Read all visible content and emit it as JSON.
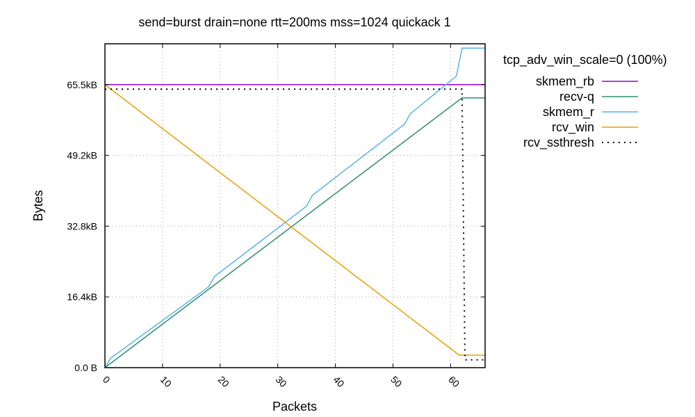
{
  "chart_data": {
    "type": "line",
    "title": "send=burst drain=none rtt=200ms mss=1024 quickack 1",
    "xlabel": "Packets",
    "ylabel": "Bytes",
    "xlim": [
      0,
      66
    ],
    "ylim": [
      0,
      75000
    ],
    "grid": true,
    "legend_position": "right",
    "legend_title": "tcp_adv_win_scale=0 (100%)",
    "x_ticks": [
      {
        "value": 0,
        "label": "0"
      },
      {
        "value": 10,
        "label": "10"
      },
      {
        "value": 20,
        "label": "20"
      },
      {
        "value": 30,
        "label": "30"
      },
      {
        "value": 40,
        "label": "40"
      },
      {
        "value": 50,
        "label": "50"
      },
      {
        "value": 60,
        "label": "60"
      }
    ],
    "y_ticks": [
      {
        "value": 0,
        "label": "0.0 B"
      },
      {
        "value": 16384,
        "label": "16.4kB"
      },
      {
        "value": 32768,
        "label": "32.8kB"
      },
      {
        "value": 49152,
        "label": "49.2kB"
      },
      {
        "value": 65536,
        "label": "65.5kB"
      }
    ],
    "series": [
      {
        "name": "skmem_rb",
        "color": "#9400d3",
        "dash": "solid",
        "points": [
          [
            0,
            65536
          ],
          [
            66,
            65536
          ]
        ]
      },
      {
        "name": "recv-q",
        "color": "#2e8b6e",
        "dash": "solid",
        "points": [
          [
            0,
            0
          ],
          [
            62,
            62464
          ],
          [
            66,
            62464
          ]
        ]
      },
      {
        "name": "skmem_r",
        "color": "#56b4e9",
        "dash": "solid",
        "points": [
          [
            0,
            0
          ],
          [
            1,
            2200
          ],
          [
            18,
            18700
          ],
          [
            19,
            21100
          ],
          [
            35,
            37400
          ],
          [
            36,
            39900
          ],
          [
            52,
            56400
          ],
          [
            53,
            58800
          ],
          [
            61,
            67500
          ],
          [
            62,
            74000
          ],
          [
            66,
            74000
          ]
        ]
      },
      {
        "name": "rcv_win",
        "color": "#e69f00",
        "dash": "solid",
        "points": [
          [
            0,
            65536
          ],
          [
            61.5,
            2900
          ],
          [
            66,
            2900
          ]
        ]
      },
      {
        "name": "rcv_ssthresh",
        "color": "#000000",
        "dash": "dotted",
        "points": [
          [
            0,
            64500
          ],
          [
            61,
            64500
          ],
          [
            62,
            64500
          ],
          [
            62.5,
            1800
          ],
          [
            66,
            1800
          ]
        ]
      }
    ]
  }
}
